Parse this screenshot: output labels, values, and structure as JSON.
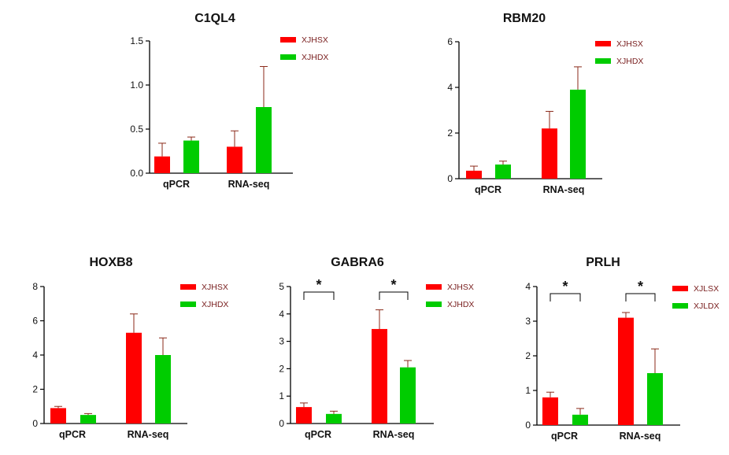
{
  "colors": {
    "red": "#ff0000",
    "green": "#00cc00",
    "error_bar": "#8b2a1a",
    "legend_text": "#7a2020",
    "axis": "#000000"
  },
  "chart_data": [
    {
      "type": "bar",
      "title": "C1QL4",
      "categories": [
        "qPCR",
        "RNA-seq"
      ],
      "ylim": [
        0,
        1.5
      ],
      "yticks": [
        "0.0",
        "0.5",
        "1.0",
        "1.5"
      ],
      "legend": "top-right",
      "series": [
        {
          "name": "XJHSX",
          "color": "#ff0000",
          "values": [
            0.19,
            0.3
          ],
          "errors": [
            0.15,
            0.18
          ]
        },
        {
          "name": "XJHDX",
          "color": "#00cc00",
          "values": [
            0.37,
            0.75
          ],
          "errors": [
            0.04,
            0.46
          ]
        }
      ],
      "significance": []
    },
    {
      "type": "bar",
      "title": "RBM20",
      "categories": [
        "qPCR",
        "RNA-seq"
      ],
      "ylim": [
        0,
        6
      ],
      "yticks": [
        "0",
        "2",
        "4",
        "6"
      ],
      "legend": "top-right",
      "series": [
        {
          "name": "XJHSX",
          "color": "#ff0000",
          "values": [
            0.35,
            2.2
          ],
          "errors": [
            0.2,
            0.75
          ]
        },
        {
          "name": "XJHDX",
          "color": "#00cc00",
          "values": [
            0.62,
            3.9
          ],
          "errors": [
            0.15,
            1.0
          ]
        }
      ],
      "significance": []
    },
    {
      "type": "bar",
      "title": "HOXB8",
      "categories": [
        "qPCR",
        "RNA-seq"
      ],
      "ylim": [
        0,
        8
      ],
      "yticks": [
        "0",
        "2",
        "4",
        "6",
        "8"
      ],
      "legend": "top-right",
      "series": [
        {
          "name": "XJHSX",
          "color": "#ff0000",
          "values": [
            0.9,
            5.3
          ],
          "errors": [
            0.1,
            1.1
          ]
        },
        {
          "name": "XJHDX",
          "color": "#00cc00",
          "values": [
            0.5,
            4.0
          ],
          "errors": [
            0.08,
            1.0
          ]
        }
      ],
      "significance": []
    },
    {
      "type": "bar",
      "title": "GABRA6",
      "categories": [
        "qPCR",
        "RNA-seq"
      ],
      "ylim": [
        0,
        5
      ],
      "yticks": [
        "0",
        "1",
        "2",
        "3",
        "4",
        "5"
      ],
      "legend": "top-right",
      "series": [
        {
          "name": "XJHSX",
          "color": "#ff0000",
          "values": [
            0.6,
            3.45
          ],
          "errors": [
            0.15,
            0.7
          ]
        },
        {
          "name": "XJHDX",
          "color": "#00cc00",
          "values": [
            0.35,
            2.05
          ],
          "errors": [
            0.1,
            0.25
          ]
        }
      ],
      "significance": [
        "*",
        "*"
      ]
    },
    {
      "type": "bar",
      "title": "PRLH",
      "categories": [
        "qPCR",
        "RNA-seq"
      ],
      "ylim": [
        0,
        4
      ],
      "yticks": [
        "0",
        "1",
        "2",
        "3",
        "4"
      ],
      "legend": "top-right",
      "series": [
        {
          "name": "XJLSX",
          "color": "#ff0000",
          "values": [
            0.8,
            3.1
          ],
          "errors": [
            0.15,
            0.15
          ]
        },
        {
          "name": "XJLDX",
          "color": "#00cc00",
          "values": [
            0.3,
            1.5
          ],
          "errors": [
            0.18,
            0.7
          ]
        }
      ],
      "significance": [
        "*",
        "*"
      ]
    }
  ]
}
